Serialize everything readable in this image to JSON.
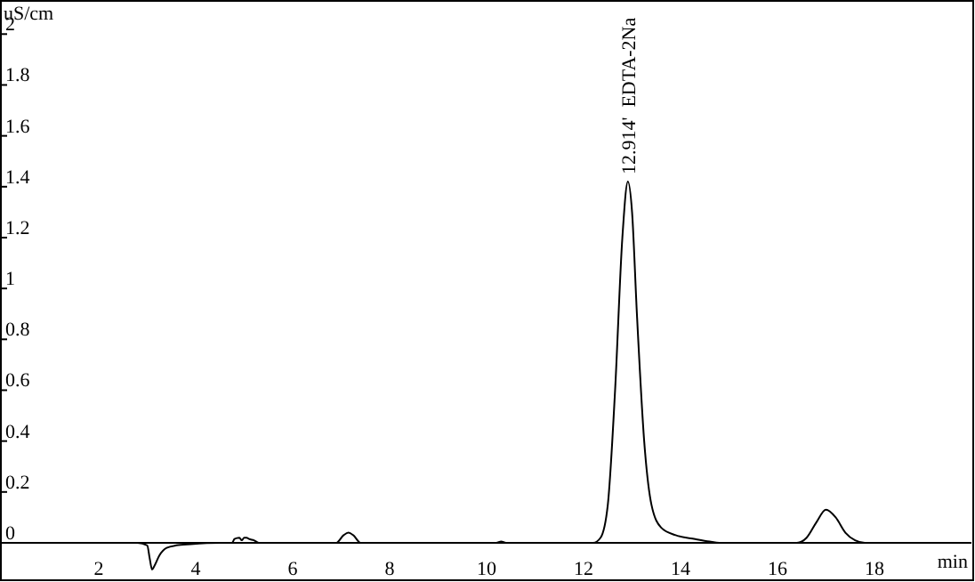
{
  "chart_data": {
    "type": "line",
    "xlabel": "min",
    "ylabel": "uS/cm",
    "xlim": [
      0,
      20
    ],
    "ylim": [
      -0.14,
      2.12
    ],
    "xticks": [
      2,
      4,
      6,
      8,
      10,
      12,
      14,
      16,
      18
    ],
    "yticks": [
      0,
      0.2,
      0.4,
      0.6,
      0.8,
      1,
      1.2,
      1.4,
      1.6,
      1.8,
      2
    ],
    "marker": "none",
    "line_style": "solid",
    "series": [
      {
        "color": "#000000",
        "x": [
          0,
          2.8,
          3.0,
          3.05,
          3.1,
          3.15,
          3.25,
          3.4,
          3.6,
          3.9,
          4.5,
          4.75,
          4.8,
          4.9,
          4.95,
          5.0,
          5.05,
          5.1,
          5.2,
          5.3,
          6.9,
          7.05,
          7.15,
          7.25,
          7.4,
          10.2,
          10.3,
          10.4,
          12.2,
          12.35,
          12.5,
          12.65,
          12.8,
          12.914,
          13.0,
          13.1,
          13.25,
          13.4,
          13.6,
          13.9,
          14.3,
          14.6,
          14.8,
          16.4,
          16.6,
          16.8,
          17.0,
          17.2,
          17.4,
          17.6,
          17.8,
          20
        ],
        "values": [
          0,
          0,
          -0.01,
          -0.06,
          -0.105,
          -0.09,
          -0.05,
          -0.02,
          -0.01,
          -0.005,
          0,
          0,
          0.015,
          0.02,
          0.01,
          0.02,
          0.02,
          0.015,
          0.01,
          0,
          0,
          0.03,
          0.04,
          0.03,
          0,
          0,
          0.005,
          0,
          0,
          0.02,
          0.15,
          0.6,
          1.2,
          1.42,
          1.3,
          0.9,
          0.4,
          0.15,
          0.06,
          0.03,
          0.015,
          0.005,
          0,
          0,
          0.02,
          0.08,
          0.13,
          0.1,
          0.04,
          0.01,
          0,
          0
        ]
      }
    ],
    "annotations": [
      {
        "text": "12.914'  EDTA-2Na",
        "x": 12.914,
        "y": 1.42
      }
    ]
  }
}
